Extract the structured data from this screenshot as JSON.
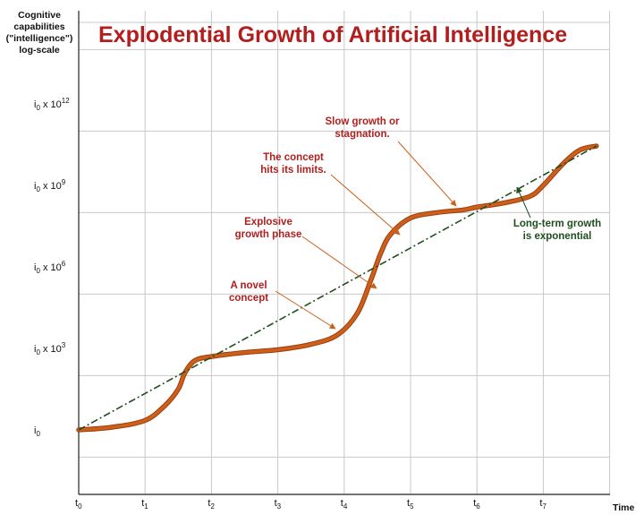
{
  "chart_data": {
    "type": "line",
    "title": "Explodential Growth of Artificial Intelligence",
    "ylabel": [
      "Cognitive",
      "capabilities",
      "(\"intelligence\")",
      "log-scale"
    ],
    "xlabel": "Time",
    "scale": "log",
    "grid": true,
    "x_ticks": [
      {
        "base": "t",
        "sub": "0"
      },
      {
        "base": "t",
        "sub": "1"
      },
      {
        "base": "t",
        "sub": "2"
      },
      {
        "base": "t",
        "sub": "3"
      },
      {
        "base": "t",
        "sub": "4"
      },
      {
        "base": "t",
        "sub": "5"
      },
      {
        "base": "t",
        "sub": "6"
      },
      {
        "base": "t",
        "sub": "7"
      }
    ],
    "y_ticks": [
      {
        "base": "i",
        "sub": "0",
        "mult": "",
        "exp": ""
      },
      {
        "base": "i",
        "sub": "0",
        "mult": " x 10",
        "exp": "3"
      },
      {
        "base": "i",
        "sub": "0",
        "mult": " x 10",
        "exp": "6"
      },
      {
        "base": "i",
        "sub": "0",
        "mult": " x 10",
        "exp": "9"
      },
      {
        "base": "i",
        "sub": "0",
        "mult": " x 10",
        "exp": "12"
      }
    ],
    "series": [
      {
        "kind": "actual",
        "color": "#cc5f1a",
        "x": [
          0,
          0.5,
          1.0,
          1.3,
          1.5,
          1.6,
          1.75,
          2.0,
          2.5,
          3.0,
          3.5,
          3.9,
          4.2,
          4.4,
          4.55,
          4.7,
          5.0,
          5.4,
          5.8,
          6.0,
          6.4,
          6.8,
          7.0,
          7.3,
          7.55,
          7.8
        ],
        "y_exp": [
          0,
          0.1,
          0.35,
          0.9,
          1.5,
          2.1,
          2.55,
          2.7,
          2.85,
          2.95,
          3.15,
          3.5,
          4.3,
          5.5,
          6.5,
          7.2,
          7.8,
          8.0,
          8.1,
          8.2,
          8.35,
          8.6,
          9.0,
          9.8,
          10.3,
          10.45
        ]
      },
      {
        "kind": "trend",
        "color": "#1f4e1f",
        "x": [
          0,
          7.8
        ],
        "y_exp": [
          0,
          10.45
        ]
      }
    ],
    "annotations": [
      {
        "lines": [
          "A novel",
          "concept"
        ],
        "color": "#b21e1e"
      },
      {
        "lines": [
          "Explosive",
          "growth phase"
        ],
        "color": "#b21e1e"
      },
      {
        "lines": [
          "The concept",
          "hits its limits."
        ],
        "color": "#b21e1e"
      },
      {
        "lines": [
          "Slow growth or",
          "stagnation."
        ],
        "color": "#b21e1e"
      },
      {
        "lines": [
          "Long-term growth",
          "is exponential"
        ],
        "color": "#1f4e1f"
      }
    ],
    "colors": {
      "title": "#b21e1e",
      "grid": "#c8c8c8",
      "axis": "#222222"
    }
  }
}
